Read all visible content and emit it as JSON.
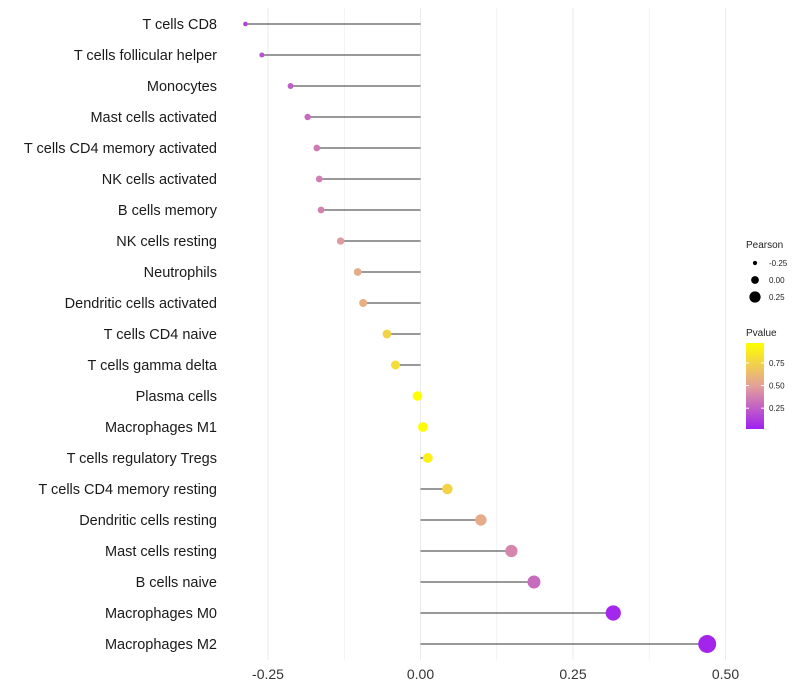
{
  "chart_data": {
    "type": "lollipop",
    "title": "",
    "xlabel": "",
    "ylabel": "",
    "xlim": [
      -0.3,
      0.52
    ],
    "xticks": [
      -0.25,
      0.0,
      0.25,
      0.5
    ],
    "xtick_labels": [
      "-0.25",
      "0.00",
      "0.25",
      "0.50"
    ],
    "grid": true,
    "categories": [
      "T cells CD8",
      "T cells follicular helper",
      "Monocytes",
      "Mast cells activated",
      "T cells CD4 memory activated",
      "NK cells activated",
      "B cells memory",
      "NK cells resting",
      "Neutrophils",
      "Dendritic cells activated",
      "T cells CD4 naive",
      "T cells gamma delta",
      "Plasma cells",
      "Macrophages M1",
      "T cells regulatory  Tregs ",
      "T cells CD4 memory resting",
      "Dendritic cells resting",
      "Mast cells resting",
      "B cells naive",
      "Macrophages M0",
      "Macrophages M2"
    ],
    "values": [
      -0.287,
      -0.26,
      -0.213,
      -0.185,
      -0.17,
      -0.166,
      -0.163,
      -0.131,
      -0.103,
      -0.094,
      -0.055,
      -0.041,
      -0.005,
      0.004,
      0.012,
      0.044,
      0.099,
      0.149,
      0.186,
      0.316,
      0.47
    ],
    "pvalues": [
      0.15,
      0.2,
      0.25,
      0.3,
      0.35,
      0.37,
      0.38,
      0.47,
      0.55,
      0.57,
      0.75,
      0.8,
      0.97,
      0.95,
      0.9,
      0.75,
      0.55,
      0.4,
      0.3,
      0.05,
      0.04
    ],
    "legend_size": {
      "title": "Pearson",
      "entries": [
        {
          "label": "-0.25",
          "value": -0.25
        },
        {
          "label": "0.00",
          "value": 0.0
        },
        {
          "label": "0.25",
          "value": 0.25
        }
      ]
    },
    "legend_color": {
      "title": "Pvalue",
      "range": [
        0.02,
        0.97
      ],
      "low_color": "#a020f0",
      "mid_color": "#e3a09a",
      "high_color": "#ffff00",
      "ticks": [
        {
          "label": "0.75",
          "value": 0.75
        },
        {
          "label": "0.50",
          "value": 0.5
        },
        {
          "label": "0.25",
          "value": 0.25
        }
      ]
    },
    "colors": {
      "segment": "#333333",
      "grid": "#ebebeb"
    },
    "legend_position": "right"
  }
}
